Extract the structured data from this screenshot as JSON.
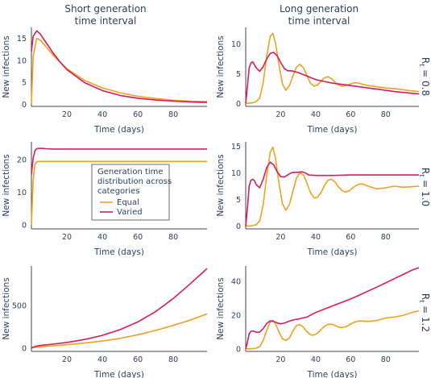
{
  "figure": {
    "column_titles": [
      [
        "Short generation",
        "time interval"
      ],
      [
        "Long generation",
        "time interval"
      ]
    ],
    "row_labels": [
      {
        "symbol": "R",
        "subscript": "t",
        "value": " = 0.8"
      },
      {
        "symbol": "R",
        "subscript": "t",
        "value": " = 1.0"
      },
      {
        "symbol": "R",
        "subscript": "t",
        "value": " = 1.2"
      }
    ],
    "legend": {
      "title_lines": [
        "Generation time",
        "distribution across",
        "categories"
      ],
      "items": [
        {
          "label": "Equal",
          "color": "#f0a020"
        },
        {
          "label": "Varied",
          "color": "#d81b60"
        }
      ]
    },
    "colors": {
      "equal": "#f0a020",
      "varied": "#d81b60",
      "axis_text": "#2a3f5f",
      "axis_line": "#444444"
    }
  },
  "chart_data": [
    {
      "type": "line",
      "panel": "short-0.8",
      "xlabel": "Time (days)",
      "ylabel": "New infections",
      "xlim": [
        0,
        99
      ],
      "ylim": [
        -0.5,
        17.5
      ],
      "xticks": [
        20,
        40,
        60,
        80
      ],
      "yticks": [
        0,
        5,
        10,
        15
      ],
      "series": [
        {
          "name": "Equal",
          "x": [
            0,
            1,
            3,
            5,
            8,
            12,
            16,
            20,
            30,
            40,
            50,
            60,
            70,
            80,
            90,
            99
          ],
          "values": [
            0,
            11,
            15,
            14.6,
            13.2,
            11.3,
            9.6,
            8.1,
            5.4,
            3.7,
            2.6,
            1.8,
            1.3,
            0.9,
            0.7,
            0.6
          ]
        },
        {
          "name": "Varied",
          "x": [
            0,
            1,
            3,
            5,
            8,
            12,
            16,
            20,
            30,
            40,
            50,
            60,
            70,
            80,
            90,
            99
          ],
          "values": [
            12,
            15.5,
            16.7,
            16,
            14.2,
            11.8,
            9.7,
            7.9,
            4.9,
            3.1,
            2.0,
            1.35,
            0.95,
            0.7,
            0.5,
            0.4
          ]
        }
      ]
    },
    {
      "type": "line",
      "panel": "long-0.8",
      "xlabel": "Time (days)",
      "ylabel": "New infections",
      "xlim": [
        0,
        99
      ],
      "ylim": [
        -0.5,
        12.8
      ],
      "xticks": [
        20,
        40,
        60,
        80
      ],
      "yticks": [
        0,
        5,
        10
      ],
      "series": [
        {
          "name": "Equal",
          "x": [
            0,
            4,
            6,
            8,
            10,
            12,
            14,
            15.5,
            17,
            19,
            21,
            23,
            25,
            27,
            29,
            31,
            33,
            35,
            37,
            39,
            41,
            43,
            45,
            47,
            49,
            51,
            53,
            55,
            57,
            59,
            61,
            63,
            65,
            67,
            70,
            75,
            80,
            85,
            90,
            95,
            99
          ],
          "values": [
            0,
            0.1,
            0.3,
            0.9,
            3.5,
            8.0,
            11.3,
            11.8,
            10.2,
            6.5,
            3.3,
            2.2,
            3.0,
            4.6,
            6.1,
            6.6,
            6.0,
            4.7,
            3.4,
            2.9,
            3.1,
            3.7,
            4.3,
            4.5,
            4.2,
            3.6,
            3.1,
            2.9,
            3.0,
            3.2,
            3.4,
            3.5,
            3.4,
            3.2,
            3.0,
            2.8,
            2.6,
            2.5,
            2.3,
            2.1,
            2.0
          ]
        },
        {
          "name": "Varied",
          "x": [
            0,
            1,
            2,
            3,
            4,
            6,
            8,
            10,
            12,
            14,
            16,
            18,
            20,
            22,
            24,
            26,
            30,
            35,
            40,
            45,
            50,
            55,
            60,
            65,
            70,
            75,
            80,
            85,
            90,
            95,
            99
          ],
          "values": [
            0,
            3,
            6,
            6.8,
            7.0,
            6.0,
            5.4,
            6.2,
            7.5,
            8.4,
            8.6,
            8.0,
            6.9,
            5.9,
            5.5,
            5.5,
            5.2,
            4.6,
            4.0,
            3.7,
            3.4,
            3.2,
            3.0,
            2.8,
            2.6,
            2.4,
            2.2,
            2.0,
            1.85,
            1.7,
            1.6
          ]
        }
      ]
    },
    {
      "type": "line",
      "panel": "short-1.0",
      "xlabel": "Time (days)",
      "ylabel": "New infections",
      "xlim": [
        0,
        99
      ],
      "ylim": [
        -1.2,
        25.5
      ],
      "xticks": [
        20,
        40,
        60,
        80
      ],
      "yticks": [
        0,
        10,
        20
      ],
      "series": [
        {
          "name": "Equal",
          "x": [
            0,
            1,
            2,
            3,
            4,
            6,
            10,
            20,
            40,
            60,
            80,
            99
          ],
          "values": [
            0,
            14,
            18.6,
            19.4,
            19.5,
            19.5,
            19.5,
            19.5,
            19.5,
            19.5,
            19.5,
            19.5
          ]
        },
        {
          "name": "Varied",
          "x": [
            0,
            1,
            2,
            3,
            4,
            6,
            8,
            12,
            20,
            40,
            60,
            80,
            99
          ],
          "values": [
            15.5,
            20.5,
            22.8,
            23.4,
            23.5,
            23.5,
            23.4,
            23.3,
            23.3,
            23.3,
            23.3,
            23.3,
            23.3
          ]
        }
      ]
    },
    {
      "type": "line",
      "panel": "long-1.0",
      "xlabel": "Time (days)",
      "ylabel": "New infections",
      "xlim": [
        0,
        99
      ],
      "ylim": [
        -0.5,
        15.8
      ],
      "xticks": [
        20,
        40,
        60,
        80
      ],
      "yticks": [
        0,
        5,
        10,
        15
      ],
      "series": [
        {
          "name": "Equal",
          "x": [
            0,
            4,
            6,
            8,
            10,
            12,
            14,
            15.5,
            17,
            19,
            21,
            23,
            25,
            27,
            29,
            31,
            33,
            35,
            37,
            39,
            41,
            43,
            45,
            47,
            49,
            51,
            53,
            55,
            57,
            59,
            61,
            63,
            65,
            67,
            70,
            75,
            80,
            85,
            90,
            95,
            99
          ],
          "values": [
            0,
            0.1,
            0.3,
            1.0,
            4.0,
            9.5,
            13.8,
            14.8,
            12.8,
            8.0,
            4.2,
            3.0,
            4.1,
            6.6,
            9.0,
            10.0,
            9.6,
            8.1,
            6.3,
            5.3,
            5.4,
            6.3,
            7.6,
            8.6,
            8.8,
            8.3,
            7.4,
            6.7,
            6.4,
            6.6,
            7.1,
            7.6,
            7.9,
            7.9,
            7.5,
            7.0,
            7.2,
            7.5,
            7.3,
            7.4,
            7.5
          ]
        },
        {
          "name": "Varied",
          "x": [
            0,
            1,
            2,
            3,
            4,
            5,
            6,
            8,
            10,
            12,
            14,
            16,
            18,
            20,
            22,
            24,
            26,
            28,
            30,
            32,
            34,
            36,
            40,
            45,
            50,
            60,
            70,
            80,
            90,
            99
          ],
          "values": [
            0,
            3.5,
            7.5,
            8.6,
            8.8,
            8.5,
            7.8,
            7.2,
            8.8,
            11.0,
            12.0,
            11.5,
            10.2,
            9.3,
            9.2,
            9.6,
            10.0,
            10.1,
            10.1,
            10.2,
            10.0,
            9.6,
            9.5,
            9.5,
            9.5,
            9.6,
            9.6,
            9.6,
            9.6,
            9.6
          ]
        }
      ]
    },
    {
      "type": "line",
      "panel": "short-1.2",
      "xlabel": "Time (days)",
      "ylabel": "New infections",
      "xlim": [
        0,
        99
      ],
      "ylim": [
        -40,
        960
      ],
      "xticks": [
        20,
        40,
        60,
        80
      ],
      "yticks": [
        0,
        500
      ],
      "series": [
        {
          "name": "Equal",
          "x": [
            0,
            2,
            5,
            10,
            20,
            30,
            40,
            50,
            60,
            70,
            80,
            90,
            99
          ],
          "values": [
            0,
            8,
            14,
            22,
            38,
            58,
            82,
            112,
            155,
            205,
            265,
            330,
            400
          ]
        },
        {
          "name": "Varied",
          "x": [
            0,
            2,
            5,
            10,
            20,
            30,
            40,
            50,
            60,
            70,
            80,
            90,
            99
          ],
          "values": [
            0,
            18,
            30,
            40,
            65,
            100,
            148,
            215,
            305,
            425,
            580,
            760,
            930
          ]
        }
      ]
    },
    {
      "type": "line",
      "panel": "long-1.2",
      "xlabel": "Time (days)",
      "ylabel": "New infections",
      "xlim": [
        0,
        99
      ],
      "ylim": [
        -1.5,
        49
      ],
      "xticks": [
        20,
        40,
        60,
        80
      ],
      "yticks": [
        0,
        20,
        40
      ],
      "series": [
        {
          "name": "Equal",
          "x": [
            0,
            4,
            6,
            8,
            10,
            12,
            14,
            15.5,
            17,
            19,
            21,
            23,
            25,
            27,
            29,
            31,
            33,
            35,
            37,
            39,
            41,
            43,
            45,
            47,
            49,
            51,
            53,
            55,
            57,
            59,
            61,
            63,
            65,
            67,
            70,
            75,
            80,
            85,
            90,
            95,
            99
          ],
          "values": [
            0,
            0.1,
            0.4,
            1.2,
            5.0,
            11.0,
            16.0,
            17.0,
            15.0,
            10.0,
            6.0,
            5.0,
            6.5,
            10.5,
            13.8,
            14.3,
            12.8,
            10.2,
            8.3,
            8.1,
            9.2,
            11.3,
            13.3,
            14.5,
            14.6,
            13.8,
            12.9,
            12.6,
            13.0,
            14.0,
            15.2,
            16.1,
            16.5,
            16.4,
            16.2,
            16.8,
            18.2,
            18.8,
            19.8,
            21.5,
            22.5
          ]
        },
        {
          "name": "Varied",
          "x": [
            0,
            1,
            2,
            3,
            4,
            5,
            6,
            8,
            10,
            12,
            14,
            16,
            18,
            20,
            22,
            24,
            26,
            28,
            30,
            35,
            40,
            45,
            50,
            55,
            60,
            65,
            70,
            75,
            80,
            85,
            90,
            95,
            99
          ],
          "values": [
            0,
            4,
            9,
            10.4,
            10.6,
            10.3,
            9.8,
            9.9,
            12.0,
            15.0,
            16.5,
            16.2,
            15.3,
            14.8,
            15.2,
            16.0,
            16.8,
            17.3,
            17.6,
            18.8,
            21.5,
            23.5,
            25.5,
            27.5,
            29.5,
            31.8,
            34.2,
            36.5,
            39.0,
            41.5,
            44.0,
            46.5,
            48.0
          ]
        }
      ]
    }
  ]
}
